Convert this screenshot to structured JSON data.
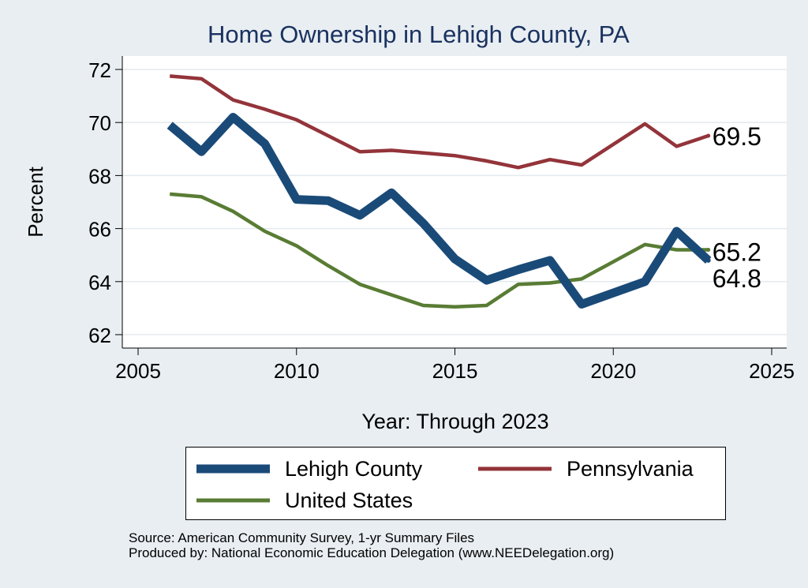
{
  "chart_data": {
    "type": "line",
    "title": "Home Ownership in Lehigh County, PA",
    "xlabel": "Year: Through 2023",
    "ylabel": "Percent",
    "xlim": [
      2005,
      2025
    ],
    "ylim": [
      62,
      72
    ],
    "x_ticks": [
      2005,
      2010,
      2015,
      2020,
      2025
    ],
    "y_ticks": [
      62,
      64,
      66,
      68,
      70,
      72
    ],
    "grid": "horizontal",
    "x": [
      2006,
      2007,
      2008,
      2009,
      2010,
      2011,
      2012,
      2013,
      2014,
      2015,
      2016,
      2017,
      2018,
      2019,
      2021,
      2022,
      2023
    ],
    "series": [
      {
        "name": "Lehigh County",
        "color": "#1a4a78",
        "width": 11,
        "values": [
          69.9,
          68.9,
          70.2,
          69.2,
          67.1,
          67.05,
          66.5,
          67.35,
          66.2,
          64.85,
          64.05,
          64.45,
          64.8,
          63.15,
          64.0,
          65.9,
          64.8
        ],
        "end_label": "64.8"
      },
      {
        "name": "Pennsylvania",
        "color": "#93343a",
        "width": 4.5,
        "values": [
          71.75,
          71.65,
          70.85,
          70.5,
          70.1,
          69.5,
          68.9,
          68.95,
          68.85,
          68.75,
          68.55,
          68.3,
          68.6,
          68.4,
          69.95,
          69.1,
          69.5
        ],
        "end_label": "69.5"
      },
      {
        "name": "United States",
        "color": "#597c34",
        "width": 4.5,
        "values": [
          67.3,
          67.2,
          66.65,
          65.9,
          65.35,
          64.6,
          63.9,
          63.5,
          63.1,
          63.05,
          63.1,
          63.9,
          63.95,
          64.1,
          65.4,
          65.2,
          65.2
        ],
        "end_label": "65.2"
      }
    ],
    "legend": {
      "position": "bottom",
      "items": [
        "Lehigh County",
        "Pennsylvania",
        "United States"
      ]
    }
  },
  "source_lines": {
    "line1": "Source: American Community Survey, 1-yr Summary Files",
    "line2": "Produced by: National Economic Education Delegation (www.NEEDelegation.org)"
  }
}
